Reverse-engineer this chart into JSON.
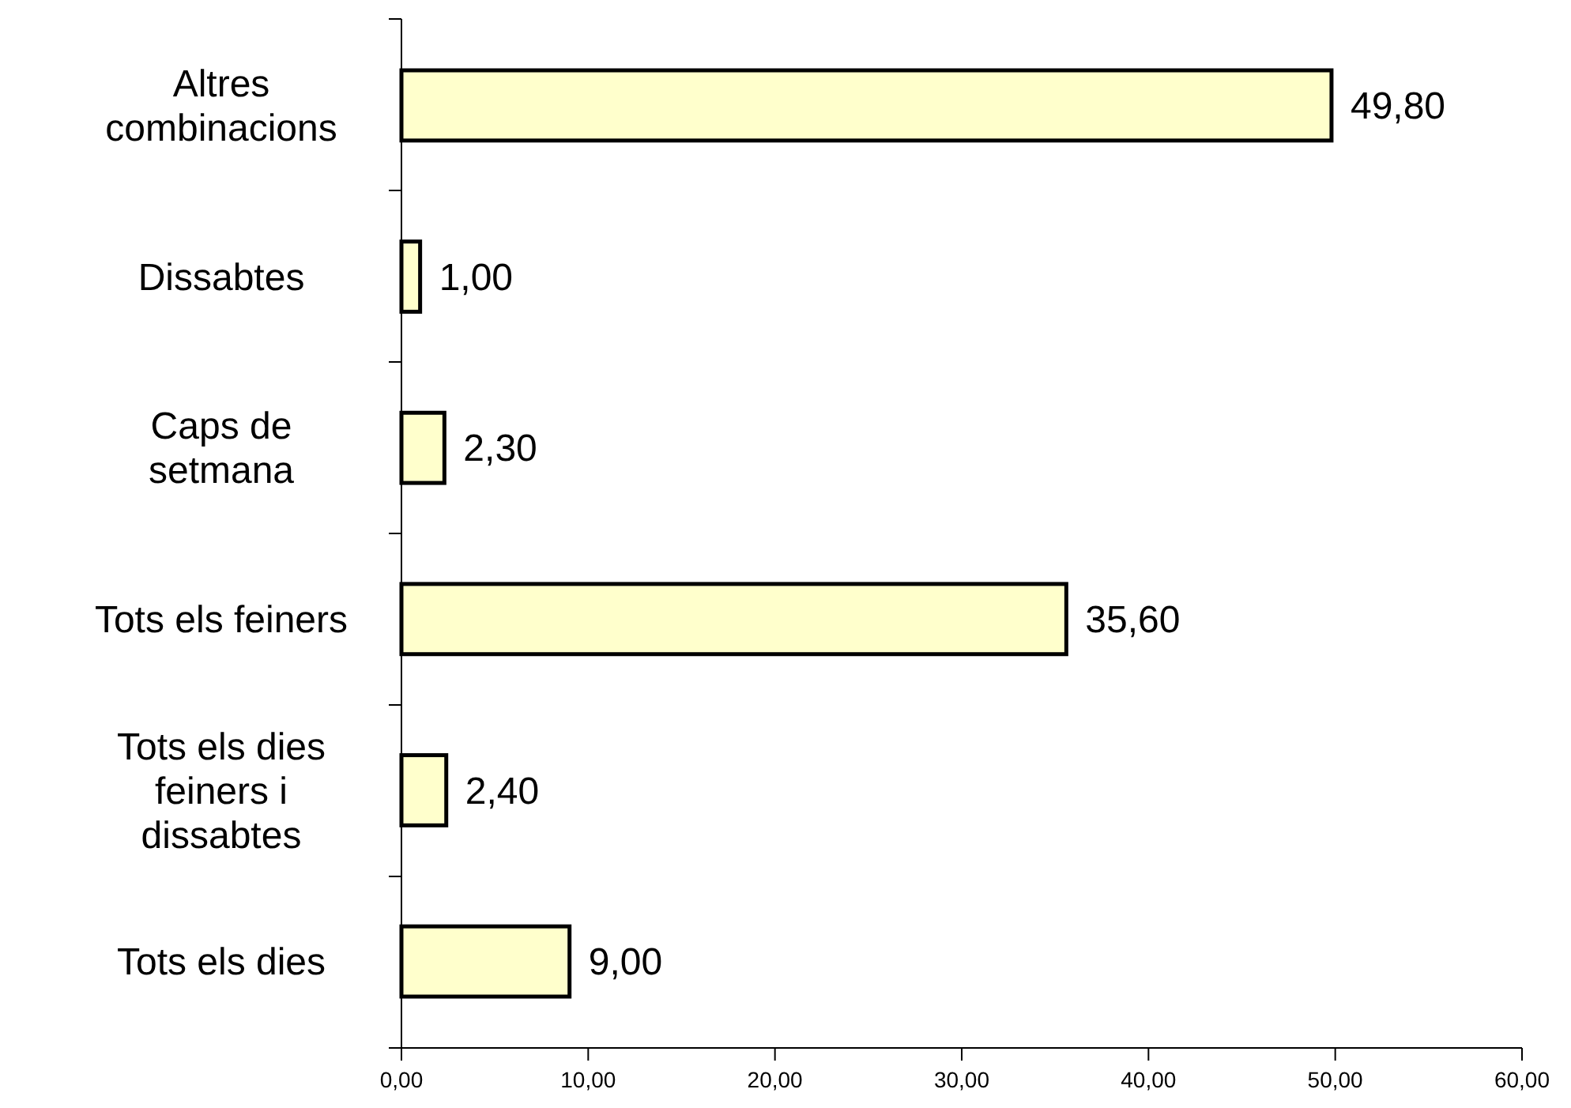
{
  "chart_data": {
    "type": "bar",
    "orientation": "horizontal",
    "categories": [
      "Altres combinacions",
      "Dissabtes",
      "Caps de setmana",
      "Tots els feiners",
      "Tots els dies feiners i dissabtes",
      "Tots els dies"
    ],
    "values": [
      49.8,
      1.0,
      2.3,
      35.6,
      2.4,
      9.0
    ],
    "value_labels": [
      "49,80",
      "1,00",
      "2,30",
      "35,60",
      "2,40",
      "9,00"
    ],
    "color": "#ffffcc",
    "xlim": [
      0,
      60
    ],
    "xticks": [
      {
        "value": 0,
        "label": "0,00"
      },
      {
        "value": 10,
        "label": "10,00"
      },
      {
        "value": 20,
        "label": "20,00"
      },
      {
        "value": 30,
        "label": "30,00"
      },
      {
        "value": 40,
        "label": "40,00"
      },
      {
        "value": 50,
        "label": "50,00"
      },
      {
        "value": 60,
        "label": "60,00"
      }
    ],
    "grid": false
  }
}
